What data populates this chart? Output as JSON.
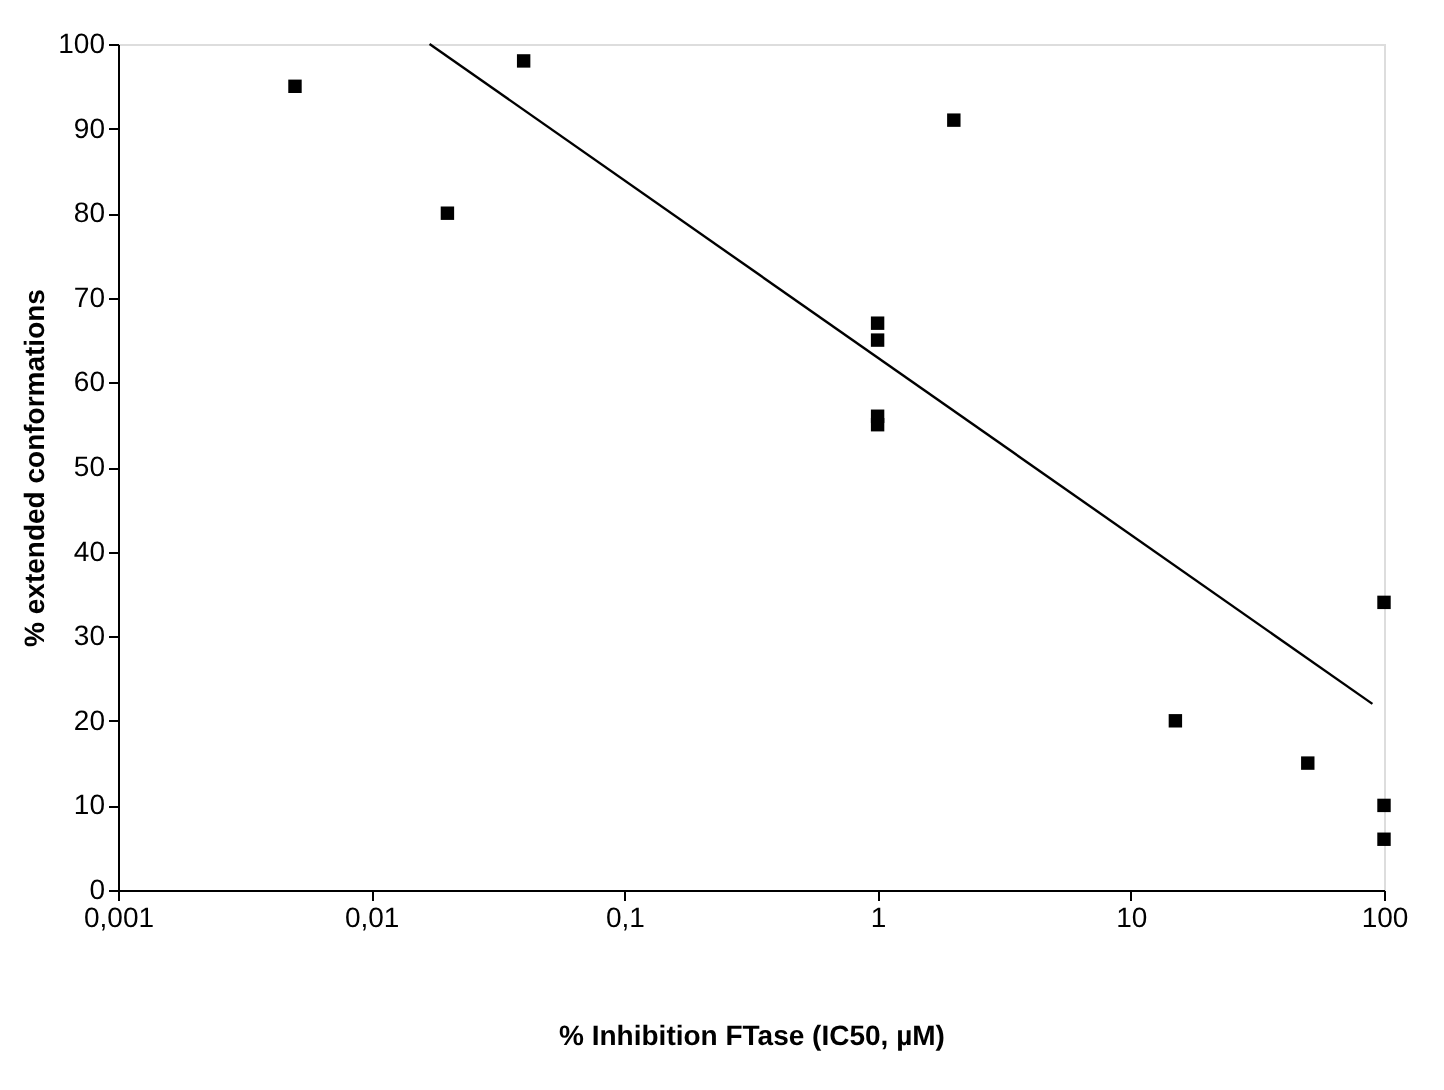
{
  "chart_data": {
    "type": "scatter",
    "xlabel": "% Inhibition FTase (IC50, µM)",
    "ylabel": "% extended conformations",
    "log": "x",
    "xlim": [
      0.001,
      100
    ],
    "xticks": [
      {
        "value": 0.001,
        "label": "0,001"
      },
      {
        "value": 0.01,
        "label": "0,01"
      },
      {
        "value": 0.1,
        "label": "0,1"
      },
      1,
      10,
      100
    ],
    "ylim": [
      0,
      100
    ],
    "yticks": [
      0,
      10,
      20,
      30,
      40,
      50,
      60,
      70,
      80,
      90,
      100
    ],
    "grid": false,
    "marker": "square",
    "series": [
      {
        "type": "scatter",
        "color": "#000000",
        "x": [
          0.005,
          0.02,
          0.04,
          1,
          1,
          1,
          1,
          2,
          15,
          50,
          100,
          100,
          100
        ],
        "values": [
          95,
          80,
          98,
          67,
          65,
          56,
          55,
          91,
          20,
          15,
          34,
          10,
          6
        ]
      },
      {
        "type": "line",
        "color": "#000000",
        "marker": "none",
        "x": [
          0.017,
          90
        ],
        "values": [
          100,
          22
        ]
      }
    ]
  }
}
